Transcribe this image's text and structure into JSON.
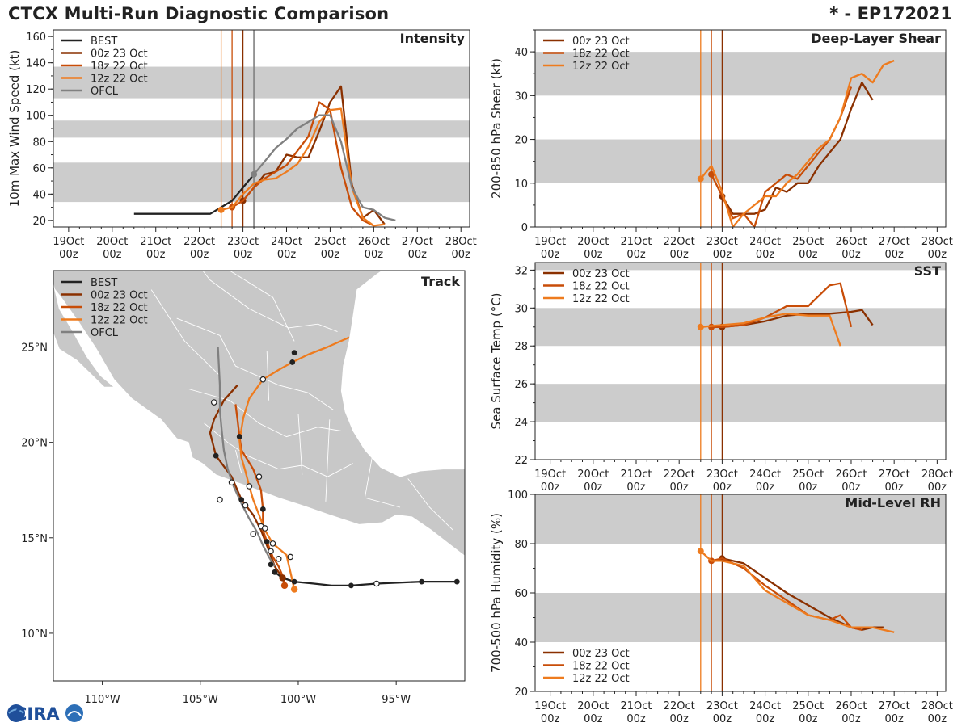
{
  "header": {
    "title": "CTCX Multi-Run Diagnostic Comparison",
    "storm": "* - EP172021"
  },
  "logo": {
    "text": "CIRA"
  },
  "colors": {
    "best": "#222222",
    "r00z": "#8a3000",
    "r18z": "#c84d08",
    "r12z": "#ee7b1e",
    "ofcl": "#808080",
    "band": "#cccccc",
    "land": "#c8c8c8",
    "border": "#ffffff"
  },
  "time_axis": {
    "ticks": [
      {
        "d": "19Oct",
        "h": "00z"
      },
      {
        "d": "20Oct",
        "h": "00z"
      },
      {
        "d": "21Oct",
        "h": "00z"
      },
      {
        "d": "22Oct",
        "h": "00z"
      },
      {
        "d": "23Oct",
        "h": "00z"
      },
      {
        "d": "24Oct",
        "h": "00z"
      },
      {
        "d": "25Oct",
        "h": "00z"
      },
      {
        "d": "26Oct",
        "h": "00z"
      },
      {
        "d": "27Oct",
        "h": "00z"
      },
      {
        "d": "28Oct",
        "h": "00z"
      }
    ],
    "units": "days since 19Oct 00z",
    "runs": [
      {
        "name": "00z 23 Oct",
        "t": 4.0,
        "color_key": "r00z"
      },
      {
        "name": "18z 22 Oct",
        "t": 3.75,
        "color_key": "r18z"
      },
      {
        "name": "12z 22 Oct",
        "t": 3.5,
        "color_key": "r12z"
      }
    ],
    "ofcl_time": 4.25
  },
  "chart_data": [
    {
      "id": "intensity",
      "type": "line",
      "title": "Intensity",
      "ylabel": "10m Max Wind Speed (kt)",
      "ylim": [
        15,
        165
      ],
      "yticks": [
        20,
        40,
        60,
        80,
        100,
        120,
        140,
        160
      ],
      "bands": [
        [
          34,
          64
        ],
        [
          83,
          96
        ],
        [
          113,
          137
        ]
      ],
      "legend": [
        "BEST",
        "00z 23 Oct",
        "18z 22 Oct",
        "12z 22 Oct",
        "OFCL"
      ],
      "series": [
        {
          "name": "BEST",
          "key": "best",
          "x": [
            1.5,
            1.75,
            2,
            2.25,
            2.5,
            2.75,
            3,
            3.25,
            3.5,
            3.75,
            4,
            4.25
          ],
          "y": [
            25,
            25,
            25,
            25,
            25,
            25,
            25,
            25,
            30,
            35,
            45,
            55
          ],
          "markers": []
        },
        {
          "name": "00z 23 Oct",
          "key": "r00z",
          "x": [
            4,
            4.25,
            4.5,
            4.75,
            5,
            5.25,
            5.5,
            5.75,
            6,
            6.25,
            6.5,
            6.75,
            7,
            7.25
          ],
          "y": [
            35,
            45,
            55,
            57,
            70,
            68,
            68,
            88,
            110,
            122,
            47,
            22,
            28,
            17
          ],
          "markers": [
            0
          ]
        },
        {
          "name": "18z 22 Oct",
          "key": "r18z",
          "x": [
            3.75,
            4,
            4.25,
            4.5,
            4.75,
            5,
            5.25,
            5.5,
            5.75,
            6,
            6.25,
            6.5,
            6.75,
            7
          ],
          "y": [
            30,
            35,
            45,
            52,
            57,
            62,
            73,
            84,
            110,
            104,
            60,
            30,
            20,
            16
          ],
          "markers": [
            0
          ]
        },
        {
          "name": "12z 22 Oct",
          "key": "r12z",
          "x": [
            3.5,
            3.75,
            4,
            4.25,
            4.5,
            4.75,
            5,
            5.25,
            5.5,
            5.75,
            6,
            6.25,
            6.5,
            6.75,
            7,
            7.25
          ],
          "y": [
            28,
            30,
            40,
            48,
            51,
            52,
            57,
            63,
            76,
            95,
            104,
            105,
            45,
            22,
            16,
            17
          ],
          "markers": [
            0
          ]
        },
        {
          "name": "OFCL",
          "key": "ofcl",
          "x": [
            4.25,
            4.5,
            4.75,
            5,
            5.25,
            5.5,
            5.75,
            6,
            6.25,
            6.5,
            6.75,
            7,
            7.25,
            7.5
          ],
          "y": [
            55,
            65,
            75,
            82,
            90,
            95,
            100,
            100,
            80,
            45,
            30,
            28,
            22,
            20
          ],
          "markers": [
            0
          ]
        }
      ]
    },
    {
      "id": "shear",
      "type": "line",
      "title": "Deep-Layer Shear",
      "ylabel": "200-850 hPa Shear (kt)",
      "ylim": [
        0,
        45
      ],
      "yticks": [
        0,
        10,
        20,
        30,
        40
      ],
      "bands": [
        [
          10,
          20
        ],
        [
          30,
          40
        ]
      ],
      "legend": [
        "00z 23 Oct",
        "18z 22 Oct",
        "12z 22 Oct"
      ],
      "series": [
        {
          "name": "00z 23 Oct",
          "key": "r00z",
          "x": [
            4,
            4.25,
            4.5,
            4.75,
            5,
            5.25,
            5.5,
            5.75,
            6,
            6.25,
            6.5,
            6.75,
            7,
            7.25,
            7.5,
            7.75
          ],
          "y": [
            7,
            3,
            3,
            3,
            4,
            9,
            8,
            10,
            10,
            14,
            17,
            20,
            27,
            33,
            29,
            null
          ],
          "markers": [
            0
          ]
        },
        {
          "name": "18z 22 Oct",
          "key": "r18z",
          "x": [
            3.75,
            4,
            4.25,
            4.5,
            4.75,
            5,
            5.25,
            5.5,
            5.75,
            6,
            6.25,
            6.5,
            6.75,
            7
          ],
          "y": [
            12,
            7,
            2,
            3,
            0,
            8,
            10,
            12,
            11,
            14,
            17,
            20,
            25,
            32
          ],
          "markers": [
            0
          ]
        },
        {
          "name": "12z 22 Oct",
          "key": "r12z",
          "x": [
            3.5,
            3.75,
            4,
            4.25,
            4.5,
            4.75,
            5,
            5.25,
            5.5,
            5.75,
            6,
            6.25,
            6.5,
            6.75,
            7,
            7.25,
            7.5,
            7.75,
            8
          ],
          "y": [
            11,
            14,
            8,
            0,
            3,
            5,
            7,
            7,
            10,
            12,
            15,
            18,
            20,
            25,
            34,
            35,
            33,
            37,
            38
          ],
          "markers": [
            0
          ]
        }
      ]
    },
    {
      "id": "sst",
      "type": "line",
      "title": "SST",
      "ylabel": "Sea Surface Temp (°C)",
      "ylim": [
        22,
        32.4
      ],
      "yticks": [
        22,
        24,
        26,
        28,
        30,
        32
      ],
      "bands": [
        [
          24,
          26
        ],
        [
          28,
          30
        ],
        [
          32,
          32.4
        ]
      ],
      "legend": [
        "00z 23 Oct",
        "18z 22 Oct",
        "12z 22 Oct"
      ],
      "series": [
        {
          "name": "00z 23 Oct",
          "key": "r00z",
          "x": [
            4,
            4.5,
            5,
            5.5,
            6,
            6.5,
            7,
            7.25,
            7.5
          ],
          "y": [
            29,
            29.1,
            29.3,
            29.6,
            29.7,
            29.7,
            29.8,
            29.9,
            29.1
          ],
          "markers": [
            0
          ]
        },
        {
          "name": "18z 22 Oct",
          "key": "r18z",
          "x": [
            3.75,
            4,
            4.5,
            5,
            5.5,
            6,
            6.5,
            6.75,
            7,
            7.25
          ],
          "y": [
            29,
            29,
            29.1,
            29.5,
            30.1,
            30.1,
            31.2,
            31.3,
            29.0,
            null
          ],
          "markers": [
            0
          ]
        },
        {
          "name": "12z 22 Oct",
          "key": "r12z",
          "x": [
            3.5,
            4,
            4.5,
            5,
            5.5,
            6,
            6.5,
            6.75
          ],
          "y": [
            29,
            29.1,
            29.2,
            29.5,
            29.7,
            29.6,
            29.6,
            28.0
          ],
          "markers": [
            0
          ]
        }
      ]
    },
    {
      "id": "rh",
      "type": "line",
      "title": "Mid-Level RH",
      "ylabel": "700-500 hPa Humidity (%)",
      "ylim": [
        20,
        100
      ],
      "yticks": [
        20,
        40,
        60,
        80,
        100
      ],
      "bands": [
        [
          40,
          60
        ],
        [
          80,
          100
        ]
      ],
      "legend": [
        "00z 23 Oct",
        "18z 22 Oct",
        "12z 22 Oct"
      ],
      "series": [
        {
          "name": "00z 23 Oct",
          "key": "r00z",
          "x": [
            4,
            4.5,
            5,
            5.5,
            6,
            6.5,
            7,
            7.25,
            7.5,
            7.75
          ],
          "y": [
            74,
            72,
            66,
            60,
            55,
            50,
            46,
            45,
            46,
            46
          ],
          "markers": [
            0
          ]
        },
        {
          "name": "18z 22 Oct",
          "key": "r18z",
          "x": [
            3.75,
            4,
            4.5,
            5,
            5.5,
            6,
            6.5,
            6.75,
            7,
            7.25
          ],
          "y": [
            73,
            74,
            70,
            63,
            57,
            51,
            49,
            51,
            46,
            45
          ],
          "markers": [
            0
          ]
        },
        {
          "name": "12z 22 Oct",
          "key": "r12z",
          "x": [
            3.5,
            3.75,
            4,
            4.5,
            5,
            5.5,
            6,
            6.5,
            7,
            7.5,
            8
          ],
          "y": [
            77,
            73,
            73,
            71,
            61,
            56,
            51,
            49,
            46,
            46,
            44
          ],
          "markers": [
            0
          ]
        }
      ]
    }
  ],
  "track": {
    "title": "Track",
    "legend": [
      "BEST",
      "00z 23 Oct",
      "18z 22 Oct",
      "12z 22 Oct",
      "OFCL"
    ],
    "lon_range": [
      -112.5,
      -91.5
    ],
    "lat_range": [
      7.5,
      29
    ],
    "lon_ticks": [
      {
        "v": -110,
        "label": "110°W"
      },
      {
        "v": -105,
        "label": "105°W"
      },
      {
        "v": -100,
        "label": "100°W"
      },
      {
        "v": -95,
        "label": "95°W"
      }
    ],
    "lat_ticks": [
      {
        "v": 10,
        "label": "10°N"
      },
      {
        "v": 15,
        "label": "15°N"
      },
      {
        "v": 20,
        "label": "20°N"
      },
      {
        "v": 25,
        "label": "25°N"
      }
    ],
    "tracks": [
      {
        "name": "BEST",
        "key": "best",
        "lon": [
          -91.9,
          -93.7,
          -96.0,
          -97.3,
          -98.3,
          -99.2,
          -100.2,
          -100.8,
          -101.2
        ],
        "lat": [
          12.7,
          12.7,
          12.6,
          12.5,
          12.5,
          12.6,
          12.7,
          12.9,
          13.2
        ],
        "filled": [
          0,
          1,
          3,
          6,
          7,
          8
        ],
        "hollow": [
          2
        ]
      },
      {
        "name": "00z 23 Oct",
        "key": "r00z",
        "lon": [
          -100.8,
          -101.2,
          -101.6,
          -101.9,
          -102.3,
          -102.9,
          -103.4,
          -104.2,
          -104.5,
          -104.3,
          -103.8,
          -103.1
        ],
        "lat": [
          12.9,
          13.5,
          14.6,
          15.4,
          16.2,
          17.0,
          18.2,
          19.3,
          20.5,
          21.2,
          22.2,
          23.0
        ],
        "filled": [
          0,
          5,
          7
        ],
        "hollow": []
      },
      {
        "name": "18z 22 Oct",
        "key": "r18z",
        "lon": [
          -100.7,
          -100.8,
          -101.0,
          -101.3,
          -101.6,
          -101.8,
          -101.8,
          -101.9,
          -102.3,
          -102.9,
          -103.0,
          -103.1,
          -103.2
        ],
        "lat": [
          12.5,
          13.0,
          13.5,
          14.0,
          14.8,
          15.4,
          16.5,
          17.5,
          18.6,
          19.6,
          20.3,
          21.2,
          22.0
        ],
        "filled": [
          0,
          4,
          6,
          10
        ],
        "hollow": []
      },
      {
        "name": "12z 22 Oct",
        "key": "r12z",
        "lon": [
          -100.2,
          -100.4,
          -100.6,
          -101.3,
          -101.7,
          -102.0,
          -102.3,
          -102.5,
          -102.7,
          -102.9,
          -103.0,
          -102.8,
          -102.5,
          -101.8,
          -101.0,
          -100.3,
          -99.5,
          -98.5,
          -97.4
        ],
        "lat": [
          12.3,
          13.2,
          14.1,
          14.7,
          15.4,
          16.2,
          17.0,
          17.7,
          18.5,
          19.2,
          20.1,
          21.3,
          22.3,
          23.3,
          23.8,
          24.2,
          24.6,
          25.0,
          25.5
        ],
        "filled": [
          0,
          15
        ],
        "hollow": [
          3,
          7,
          13
        ]
      },
      {
        "name": "OFCL",
        "key": "ofcl",
        "lon": [
          -101.2,
          -101.5,
          -101.8,
          -102.1,
          -102.5,
          -102.9,
          -103.3,
          -103.6,
          -103.8,
          -103.9,
          -104.0,
          -104.0,
          -104.1
        ],
        "lat": [
          13.5,
          14.0,
          14.6,
          15.3,
          16.0,
          16.8,
          17.7,
          18.6,
          19.6,
          20.6,
          21.7,
          23.0,
          25.0
        ],
        "filled": [],
        "hollow": []
      }
    ],
    "extra_points": [
      {
        "lon": -101.0,
        "lat": 13.9,
        "type": "hollow"
      },
      {
        "lon": -100.4,
        "lat": 14.0,
        "type": "hollow"
      },
      {
        "lon": -101.4,
        "lat": 14.3,
        "type": "hollow"
      },
      {
        "lon": -102.3,
        "lat": 15.2,
        "type": "hollow"
      },
      {
        "lon": -101.9,
        "lat": 15.6,
        "type": "hollow"
      },
      {
        "lon": -101.7,
        "lat": 15.5,
        "type": "hollow"
      },
      {
        "lon": -102.7,
        "lat": 16.7,
        "type": "hollow"
      },
      {
        "lon": -103.4,
        "lat": 17.9,
        "type": "hollow"
      },
      {
        "lon": -104.0,
        "lat": 17.0,
        "type": "hollow"
      },
      {
        "lon": -104.3,
        "lat": 22.1,
        "type": "hollow"
      },
      {
        "lon": -102.0,
        "lat": 18.2,
        "type": "hollow"
      },
      {
        "lon": -101.4,
        "lat": 13.6,
        "type": "filled"
      },
      {
        "lon": -100.2,
        "lat": 24.7,
        "type": "filled"
      }
    ]
  }
}
